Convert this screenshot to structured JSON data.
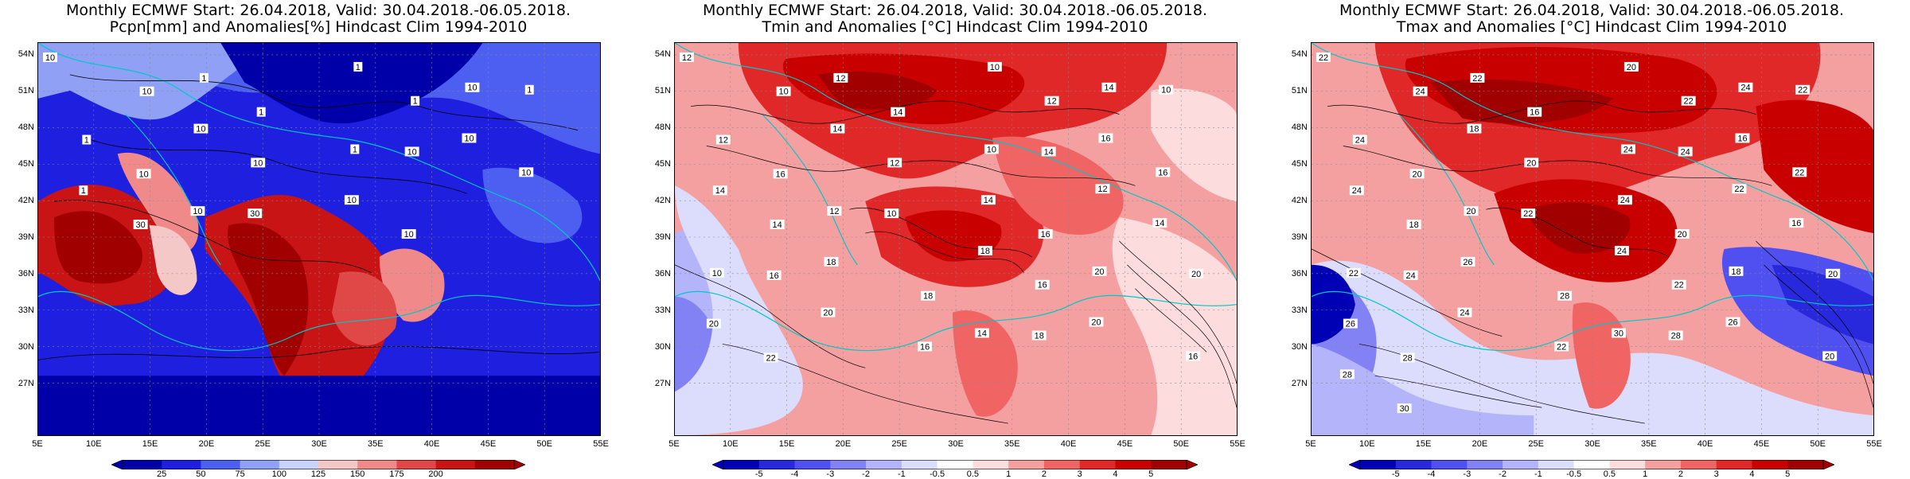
{
  "panels": [
    {
      "title_line1": "Monthly ECMWF Start: 26.04.2018, Valid: 30.04.2018.-06.05.2018.",
      "title_line2": "Pcpn[mm] and Anomalies[%] Hindcast Clim 1994-2010",
      "colorbar_ticks": [
        "25",
        "50",
        "75",
        "100",
        "125",
        "150",
        "175",
        "200"
      ],
      "colorbar_colors": [
        "#0000a8",
        "#1f1fe0",
        "#4d5ff0",
        "#8fa0f5",
        "#c8d2fa",
        "#f5c8c8",
        "#f08a8a",
        "#e04848",
        "#c81414",
        "#a00000"
      ],
      "contour_labels": [
        "10",
        "10",
        "1",
        "1",
        "1",
        "1",
        "10",
        "1",
        "1",
        "10",
        "10",
        "10",
        "1",
        "10",
        "10",
        "10",
        "1",
        "30",
        "10",
        "30",
        "10",
        "10"
      ]
    },
    {
      "title_line1": "Monthly ECMWF Start: 26.04.2018, Valid: 30.04.2018.-06.05.2018.",
      "title_line2": "Tmin and Anomalies [°C] Hindcast Clim 1994-2010",
      "colorbar_ticks": [
        "-5",
        "-4",
        "-3",
        "-2",
        "-1",
        "-0.5",
        "0.5",
        "1",
        "2",
        "3",
        "4",
        "5"
      ],
      "colorbar_colors": [
        "#0000b4",
        "#2828dc",
        "#5050f0",
        "#8282f5",
        "#b4b4fa",
        "#dcdcfc",
        "#ffffff",
        "#fcdcdc",
        "#f5a0a0",
        "#f06464",
        "#e02828",
        "#c80000",
        "#a00000"
      ],
      "contour_labels": [
        "12",
        "10",
        "12",
        "14",
        "10",
        "12",
        "14",
        "10",
        "12",
        "16",
        "14",
        "12",
        "10",
        "14",
        "16",
        "16",
        "14",
        "14",
        "12",
        "10",
        "14",
        "16",
        "12",
        "14",
        "10",
        "16",
        "18",
        "18",
        "18",
        "16",
        "20",
        "20",
        "20",
        "22",
        "20",
        "16",
        "14",
        "18",
        "20",
        "16"
      ]
    },
    {
      "title_line1": "Monthly ECMWF Start: 26.04.2018, Valid: 30.04.2018.-06.05.2018.",
      "title_line2": "Tmax and Anomalies [°C] Hindcast Clim 1994-2010",
      "colorbar_ticks": [
        "-5",
        "-4",
        "-3",
        "-2",
        "-1",
        "-0.5",
        "0.5",
        "1",
        "2",
        "3",
        "4",
        "5"
      ],
      "colorbar_colors": [
        "#0000b4",
        "#2828dc",
        "#5050f0",
        "#8282f5",
        "#b4b4fa",
        "#dcdcfc",
        "#ffffff",
        "#fcdcdc",
        "#f5a0a0",
        "#f06464",
        "#e02828",
        "#c80000",
        "#a00000"
      ],
      "contour_labels": [
        "22",
        "24",
        "22",
        "16",
        "20",
        "22",
        "24",
        "22",
        "24",
        "20",
        "18",
        "20",
        "24",
        "24",
        "16",
        "22",
        "24",
        "18",
        "20",
        "22",
        "24",
        "20",
        "22",
        "16",
        "22",
        "24",
        "26",
        "28",
        "24",
        "22",
        "18",
        "20",
        "26",
        "28",
        "24",
        "22",
        "30",
        "28",
        "26",
        "20",
        "28",
        "30"
      ]
    }
  ],
  "lat_labels": [
    "54N",
    "51N",
    "48N",
    "45N",
    "42N",
    "39N",
    "36N",
    "33N",
    "30N",
    "27N"
  ],
  "lon_labels": [
    "5E",
    "10E",
    "15E",
    "20E",
    "25E",
    "30E",
    "35E",
    "40E",
    "45E",
    "50E",
    "55E"
  ]
}
